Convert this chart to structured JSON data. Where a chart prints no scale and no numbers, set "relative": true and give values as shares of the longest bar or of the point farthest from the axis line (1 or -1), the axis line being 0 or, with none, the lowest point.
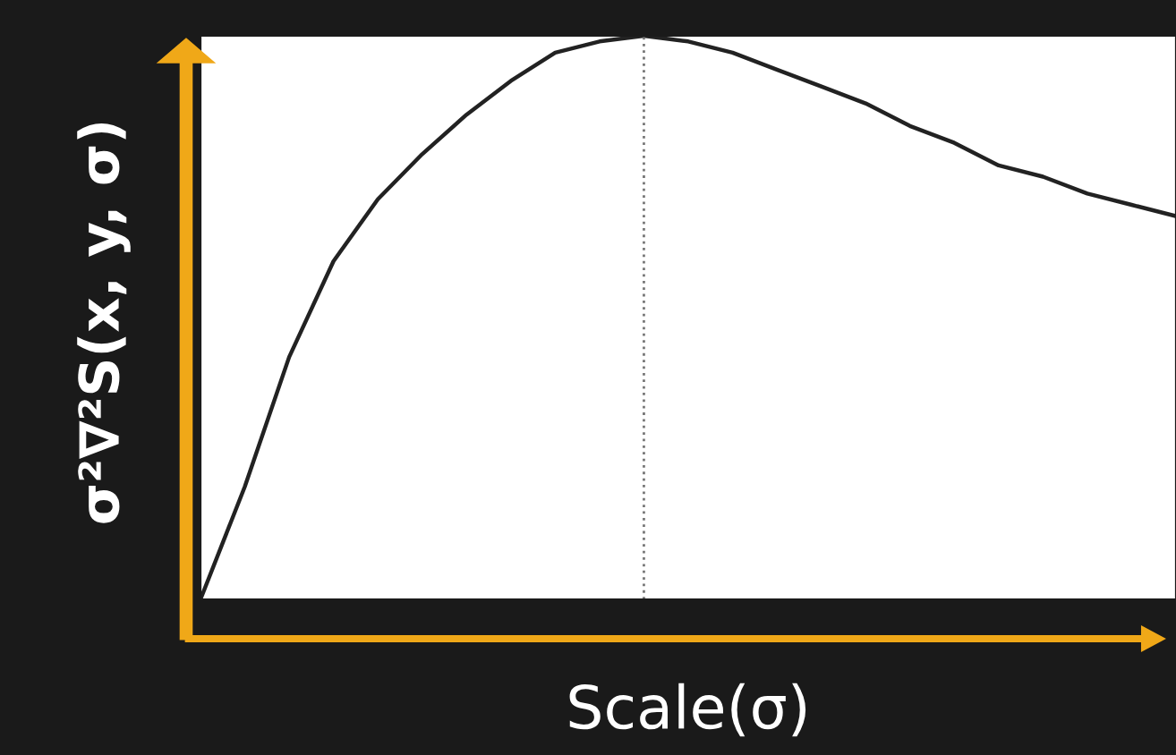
{
  "chart_data": {
    "type": "line",
    "relative": true,
    "xlabel": "Scale(σ)",
    "ylabel": "σ²∇²S(x, y, σ)",
    "categories": [
      null,
      null,
      null,
      null,
      null,
      null,
      null,
      null,
      null,
      null,
      null,
      null,
      null,
      null,
      null,
      null,
      null,
      null,
      null,
      null,
      null,
      null,
      null
    ],
    "series": [
      {
        "color": "#222222",
        "values": [
          0,
          0.2,
          0.43,
          0.6,
          0.71,
          0.79,
          0.86,
          0.92,
          0.97,
          0.99,
          1.0,
          0.99,
          0.97,
          0.94,
          0.91,
          0.88,
          0.84,
          0.81,
          0.77,
          0.75,
          0.72,
          0.7,
          0.68
        ]
      }
    ],
    "grid": false,
    "legend": false,
    "marker": "none",
    "line_style": "solid"
  }
}
